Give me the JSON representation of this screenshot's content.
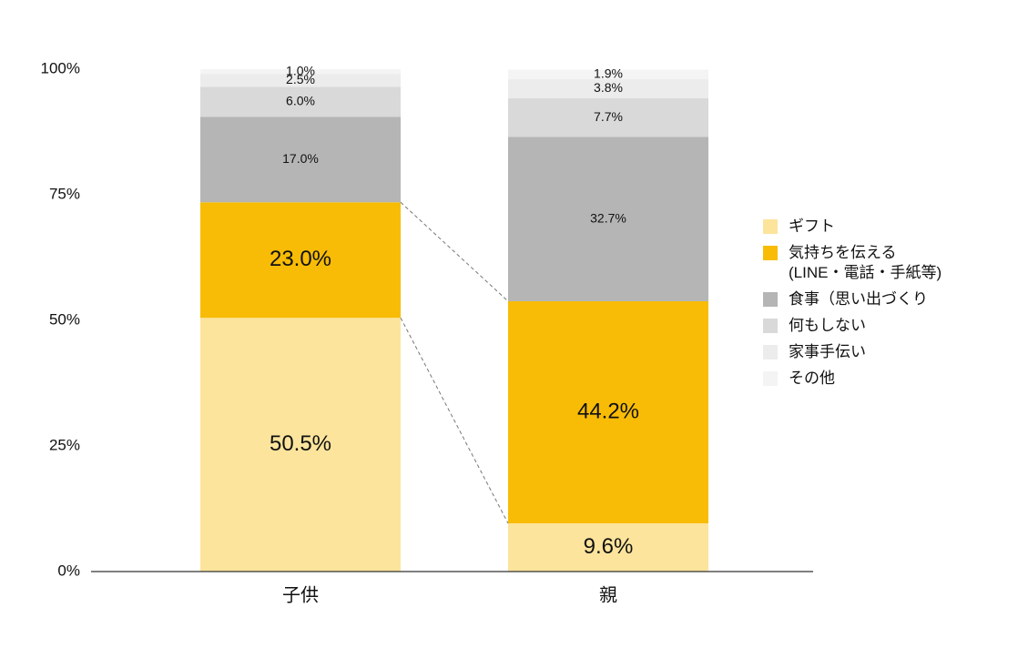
{
  "chart_data": {
    "type": "stacked_bar",
    "categories": [
      "子供",
      "親"
    ],
    "series": [
      {
        "name": "ギフト",
        "color": "#fde49c",
        "values": [
          50.5,
          9.6
        ],
        "value_labels": [
          "50.5%",
          "9.6%"
        ]
      },
      {
        "name": "気持ちを伝える\n(LINE・電話・手紙等)",
        "color": "#f8bc06",
        "values": [
          23.0,
          44.2
        ],
        "value_labels": [
          "23.0%",
          "44.2%"
        ]
      },
      {
        "name": "食事（思い出づくり",
        "color": "#b5b5b5",
        "values": [
          17.0,
          32.7
        ],
        "value_labels": [
          "17.0%",
          "32.7%"
        ]
      },
      {
        "name": "何もしない",
        "color": "#d9d9d9",
        "values": [
          6.0,
          7.7
        ],
        "value_labels": [
          "6.0%",
          "7.7%"
        ]
      },
      {
        "name": "家事手伝い",
        "color": "#ececec",
        "values": [
          2.5,
          3.8
        ],
        "value_labels": [
          "2.5%",
          "3.8%"
        ]
      },
      {
        "name": "その他",
        "color": "#f4f4f4",
        "values": [
          1.0,
          1.9
        ],
        "value_labels": [
          "1.0%",
          "1.9%"
        ]
      }
    ],
    "ylim": [
      0,
      100
    ],
    "yticks": [
      {
        "value": 0,
        "label": "0%"
      },
      {
        "value": 25,
        "label": "25%"
      },
      {
        "value": 50,
        "label": "50%"
      },
      {
        "value": 75,
        "label": "75%"
      },
      {
        "value": 100,
        "label": "100%"
      }
    ],
    "legend": "right"
  }
}
